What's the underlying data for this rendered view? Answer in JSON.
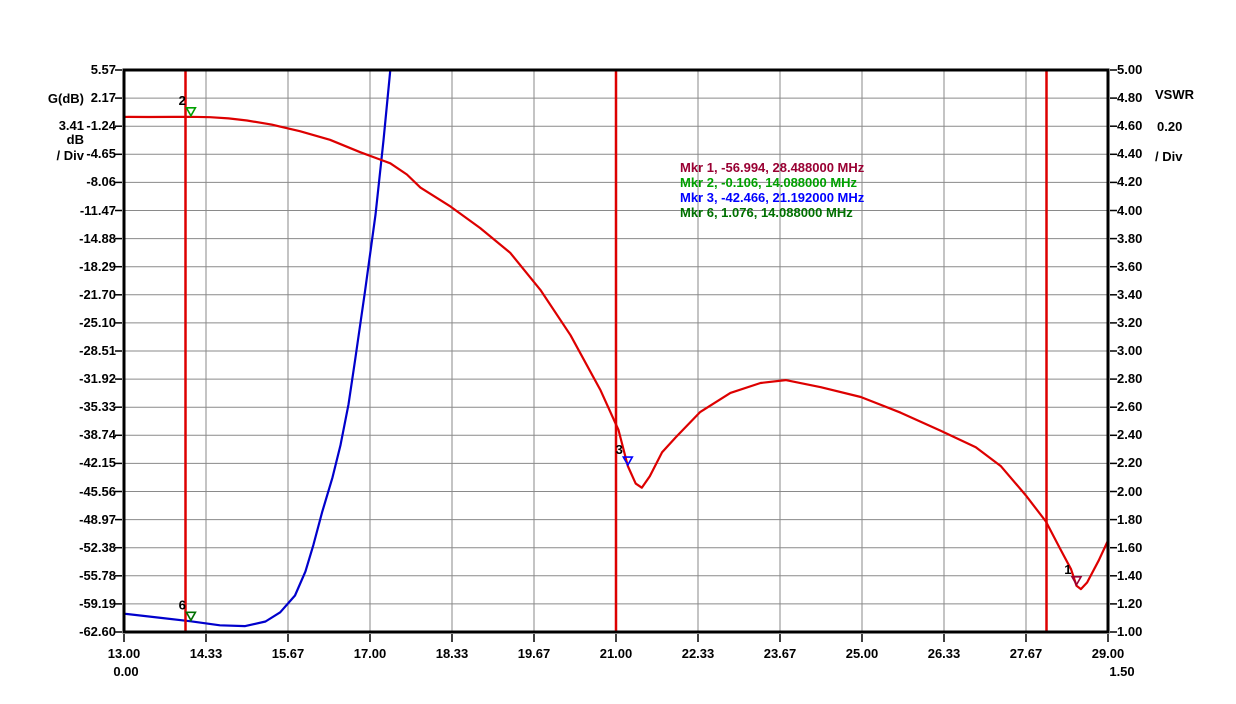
{
  "chart_data": {
    "type": "line",
    "title": "",
    "background": "#ffffff",
    "grid": true,
    "grid_color": "#8a8a8a",
    "frame_color": "#000000",
    "band_line_color": "#dd0000",
    "band_lines_mhz": [
      14.0,
      21.0,
      28.0
    ],
    "x_axis": {
      "unit": "MHz",
      "min": 13.0,
      "max": 29.0,
      "divisions": 12,
      "labels": [
        "13.00",
        "14.33",
        "15.67",
        "17.00",
        "18.33",
        "19.67",
        "21.00",
        "22.33",
        "23.67",
        "25.00",
        "26.33",
        "27.67",
        "29.00"
      ],
      "secondary_first": "0.00",
      "secondary_last": "1.50"
    },
    "left_axis": {
      "title": "G(dB)",
      "per_div": "3.41",
      "unit": "dB",
      "div_label": "/ Div",
      "color": "#dd0000",
      "min": -62.6,
      "max": 5.57,
      "ticks": [
        "5.57",
        "2.17",
        "-1.24",
        "-4.65",
        "-8.06",
        "-11.47",
        "-14.88",
        "-18.29",
        "-21.70",
        "-25.10",
        "-28.51",
        "-31.92",
        "-35.33",
        "-38.74",
        "-42.15",
        "-45.56",
        "-48.97",
        "-52.38",
        "-55.78",
        "-59.19",
        "-62.60"
      ]
    },
    "right_axis": {
      "title": "VSWR",
      "per_div": "0.20",
      "div_label": "/ Div",
      "color": "#0000cc",
      "min": 1.0,
      "max": 5.0,
      "ticks": [
        "5.00",
        "4.80",
        "4.60",
        "4.40",
        "4.20",
        "4.00",
        "3.80",
        "3.60",
        "3.40",
        "3.20",
        "3.00",
        "2.80",
        "2.60",
        "2.40",
        "2.20",
        "2.00",
        "1.80",
        "1.60",
        "1.40",
        "1.20",
        "1.00"
      ]
    },
    "series": [
      {
        "name": "gain_db",
        "axis": "left",
        "color": "#dd0000",
        "points": [
          [
            13.0,
            -0.12
          ],
          [
            13.4,
            -0.13
          ],
          [
            13.8,
            -0.12
          ],
          [
            14.088,
            -0.106
          ],
          [
            14.4,
            -0.15
          ],
          [
            14.7,
            -0.3
          ],
          [
            15.0,
            -0.55
          ],
          [
            15.4,
            -1.05
          ],
          [
            15.86,
            -1.85
          ],
          [
            16.35,
            -2.9
          ],
          [
            16.84,
            -4.4
          ],
          [
            17.33,
            -5.75
          ],
          [
            17.6,
            -7.1
          ],
          [
            17.82,
            -8.7
          ],
          [
            18.31,
            -11.0
          ],
          [
            18.79,
            -13.6
          ],
          [
            19.28,
            -16.6
          ],
          [
            19.77,
            -21.1
          ],
          [
            20.26,
            -26.6
          ],
          [
            20.75,
            -33.3
          ],
          [
            21.04,
            -38.1
          ],
          [
            21.192,
            -42.466
          ],
          [
            21.32,
            -44.6
          ],
          [
            21.42,
            -45.1
          ],
          [
            21.55,
            -43.7
          ],
          [
            21.75,
            -40.8
          ],
          [
            21.97,
            -39.0
          ],
          [
            22.37,
            -35.9
          ],
          [
            22.86,
            -33.6
          ],
          [
            23.35,
            -32.4
          ],
          [
            23.76,
            -32.05
          ],
          [
            24.33,
            -32.9
          ],
          [
            24.98,
            -34.1
          ],
          [
            25.63,
            -36.0
          ],
          [
            26.28,
            -38.2
          ],
          [
            26.85,
            -40.2
          ],
          [
            27.26,
            -42.5
          ],
          [
            27.66,
            -46.0
          ],
          [
            27.99,
            -49.2
          ],
          [
            28.23,
            -52.6
          ],
          [
            28.4,
            -55.0
          ],
          [
            28.488,
            -56.994
          ],
          [
            28.56,
            -57.4
          ],
          [
            28.66,
            -56.6
          ],
          [
            28.85,
            -53.9
          ],
          [
            29.0,
            -51.5
          ]
        ]
      },
      {
        "name": "vswr",
        "axis": "right",
        "color": "#0000cc",
        "points": [
          [
            13.0,
            1.13
          ],
          [
            13.6,
            1.1
          ],
          [
            14.088,
            1.076
          ],
          [
            14.56,
            1.048
          ],
          [
            14.97,
            1.042
          ],
          [
            15.3,
            1.075
          ],
          [
            15.54,
            1.14
          ],
          [
            15.78,
            1.26
          ],
          [
            15.95,
            1.43
          ],
          [
            16.08,
            1.62
          ],
          [
            16.22,
            1.85
          ],
          [
            16.39,
            2.1
          ],
          [
            16.52,
            2.33
          ],
          [
            16.65,
            2.62
          ],
          [
            16.76,
            2.94
          ],
          [
            16.92,
            3.43
          ],
          [
            17.09,
            3.97
          ],
          [
            17.22,
            4.5
          ],
          [
            17.33,
            5.0
          ]
        ]
      }
    ],
    "markers_on_plot": [
      {
        "label": "2",
        "freq": 14.088,
        "axis": "left",
        "value": -0.106,
        "color": "#00a000"
      },
      {
        "label": "6",
        "freq": 14.088,
        "axis": "right",
        "value": 1.076,
        "color": "#007000"
      },
      {
        "label": "3",
        "freq": 21.192,
        "axis": "left",
        "value": -42.466,
        "color": "#0000ff"
      },
      {
        "label": "1",
        "freq": 28.488,
        "axis": "left",
        "value": -56.994,
        "color": "#990033"
      }
    ],
    "marker_readouts": [
      {
        "text": "Mkr 1, -56.994, 28.488000 MHz",
        "color": "#990033"
      },
      {
        "text": "Mkr 2, -0.106, 14.088000 MHz",
        "color": "#00a000"
      },
      {
        "text": "Mkr 3, -42.466, 21.192000 MHz",
        "color": "#0000ff"
      },
      {
        "text": "Mkr 6, 1.076, 14.088000 MHz",
        "color": "#007000"
      }
    ]
  }
}
